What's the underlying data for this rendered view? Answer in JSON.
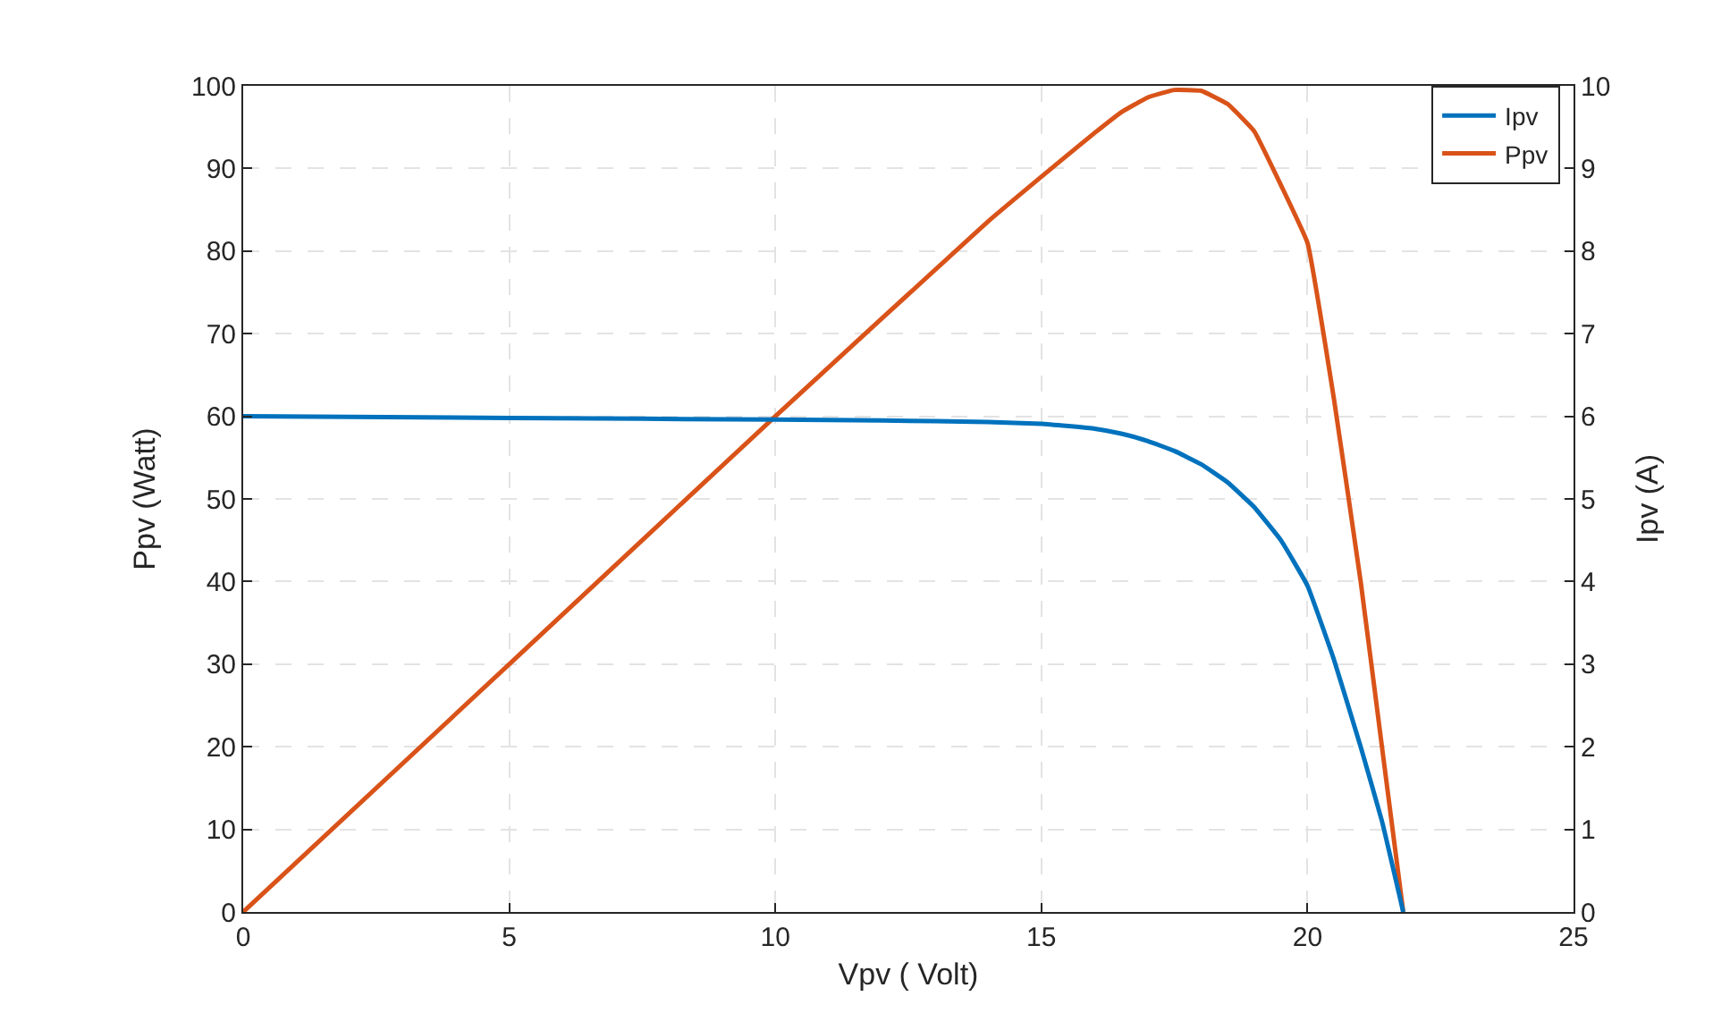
{
  "chart_data": {
    "type": "line",
    "xlabel": "Vpv ( Volt)",
    "ylabel": "Ppv (Watt)",
    "y2label": "Ipv (A)",
    "xlim": [
      0,
      25
    ],
    "xticks": [
      0,
      5,
      10,
      15,
      20,
      25
    ],
    "ylim": [
      0,
      100
    ],
    "yticks": [
      0,
      10,
      20,
      30,
      40,
      50,
      60,
      70,
      80,
      90,
      100
    ],
    "y2lim": [
      0,
      10
    ],
    "y2ticks": [
      0,
      1,
      2,
      3,
      4,
      5,
      6,
      7,
      8,
      9,
      10
    ],
    "grid": true,
    "legend": "top right",
    "line_style": "solid",
    "marker": "none",
    "series": [
      {
        "name": "Ipv",
        "color": "#0072bd",
        "axis": "y2",
        "x": [
          0,
          5,
          10,
          12,
          14,
          15,
          16,
          16.5,
          17,
          17.5,
          18,
          18.5,
          19,
          19.5,
          20,
          20.5,
          21,
          21.4,
          21.8
        ],
        "values": [
          6.0,
          5.98,
          5.96,
          5.95,
          5.93,
          5.91,
          5.85,
          5.79,
          5.7,
          5.58,
          5.42,
          5.2,
          4.9,
          4.5,
          3.95,
          3.05,
          2.0,
          1.1,
          0
        ]
      },
      {
        "name": "Ppv",
        "color": "#d95319",
        "x": [
          0,
          5,
          10,
          14,
          15,
          16,
          16.5,
          17,
          17.5,
          18,
          18.5,
          19,
          19.5,
          20,
          20.5,
          21,
          21.4,
          21.8
        ],
        "values": [
          0,
          30,
          60,
          83.6,
          89,
          94.3,
          96.8,
          98.6,
          99.5,
          99.4,
          97.8,
          94.5,
          88,
          81,
          62,
          40,
          20,
          0
        ]
      }
    ]
  }
}
